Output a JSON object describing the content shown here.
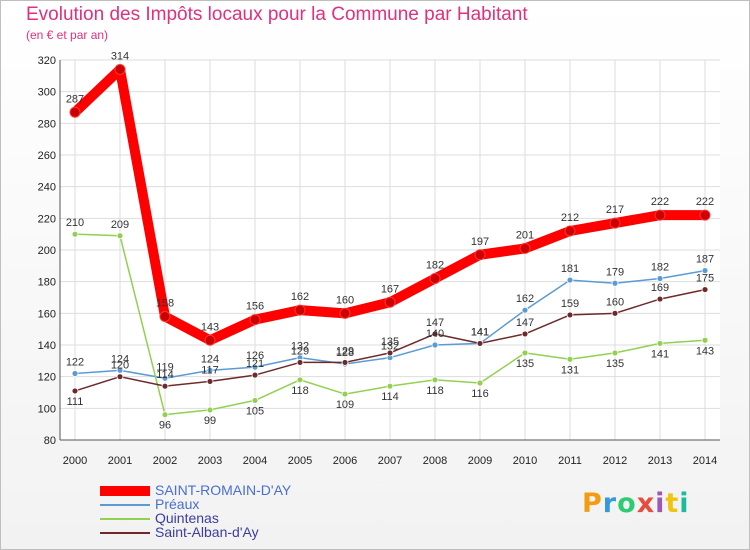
{
  "header": {
    "title": "Evolution des Impôts locaux pour la Commune par Habitant",
    "subtitle": "(en € et par an)"
  },
  "chart_data": {
    "type": "line",
    "title": "Evolution des Impôts locaux pour la Commune par Habitant",
    "ylabel": "(en € et par an)",
    "xlabel": "",
    "ylim": [
      80,
      320
    ],
    "yticks": [
      80,
      100,
      120,
      140,
      160,
      180,
      200,
      220,
      240,
      260,
      280,
      300,
      320
    ],
    "grid": true,
    "x": [
      "2000",
      "2001",
      "2002",
      "2003",
      "2004",
      "2005",
      "2006",
      "2007",
      "2008",
      "2009",
      "2010",
      "2011",
      "2012",
      "2013",
      "2014"
    ],
    "series": [
      {
        "name": "SAINT-ROMAIN-D'AY",
        "color": "#ff0000",
        "values": [
          287,
          314,
          158,
          143,
          156,
          162,
          160,
          167,
          182,
          197,
          201,
          212,
          217,
          222,
          222
        ]
      },
      {
        "name": "Préaux",
        "color": "#5b9bd5",
        "values": [
          122,
          124,
          119,
          124,
          126,
          132,
          128,
          132,
          140,
          141,
          162,
          181,
          179,
          182,
          187
        ]
      },
      {
        "name": "Quintenas",
        "color": "#92d050",
        "values": [
          210,
          209,
          96,
          99,
          105,
          118,
          109,
          114,
          118,
          116,
          135,
          131,
          135,
          141,
          143
        ]
      },
      {
        "name": "Saint-Alban-d'Ay",
        "color": "#6e2a2a",
        "values": [
          111,
          120,
          114,
          117,
          121,
          129,
          129,
          135,
          147,
          141,
          147,
          159,
          160,
          169,
          175
        ]
      }
    ],
    "legend_position": "bottom-left"
  },
  "legend": {
    "items": [
      {
        "label": "SAINT-ROMAIN-D'AY",
        "color": "#ff0000"
      },
      {
        "label": "Préaux",
        "color": "#5b9bd5"
      },
      {
        "label": "Quintenas",
        "color": "#92d050"
      },
      {
        "label": "Saint-Alban-d'Ay",
        "color": "#6e2a2a"
      }
    ]
  },
  "logo": {
    "letters": [
      "P",
      "r",
      "o",
      "x",
      "i",
      "t",
      "i"
    ],
    "colors": [
      "#f39c12",
      "#3498db",
      "#2ecc71",
      "#e74c3c",
      "#9b59b6",
      "#f1c40f",
      "#1abc9c"
    ]
  }
}
